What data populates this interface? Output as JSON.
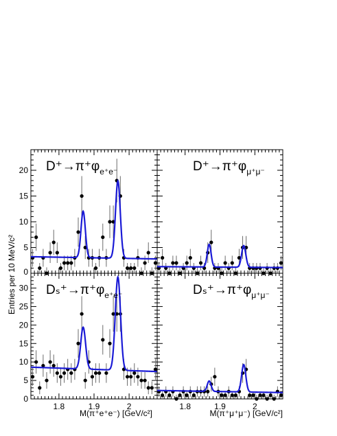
{
  "figure": {
    "ylabel": "Entries per 10 MeV/c²",
    "xlabel_left": "M(π⁺e⁺e⁻) [GeV/c²]",
    "xlabel_right": "M(π⁺μ⁺μ⁻) [GeV/c²]",
    "colors": {
      "fit": "#1a1ad6",
      "points": "#000000",
      "errors": "#6b6b6b"
    }
  },
  "chart_data": [
    {
      "type": "scatter",
      "panel": "top-left",
      "title": {
        "main": "D⁺→π⁺φ",
        "sub": "e⁺e⁻"
      },
      "xlim": [
        1.72,
        2.08
      ],
      "ylim": [
        0,
        24
      ],
      "xticks": [
        1.8,
        1.9,
        2.0
      ],
      "xticklabels": [
        "1.8",
        "1.9",
        "2"
      ],
      "yticks": [
        0,
        5,
        10,
        15,
        20
      ],
      "yticklabels": [
        "0",
        "5",
        "10",
        "15",
        "20"
      ],
      "x": [
        1.725,
        1.735,
        1.745,
        1.755,
        1.765,
        1.775,
        1.785,
        1.795,
        1.805,
        1.815,
        1.825,
        1.835,
        1.845,
        1.855,
        1.865,
        1.875,
        1.885,
        1.895,
        1.905,
        1.915,
        1.925,
        1.935,
        1.945,
        1.955,
        1.965,
        1.975,
        1.985,
        1.995,
        2.005,
        2.015,
        2.025,
        2.035,
        2.045,
        2.055,
        2.065,
        2.075
      ],
      "y": [
        3,
        7,
        1,
        3,
        0,
        4,
        6,
        4,
        1,
        2,
        2,
        2,
        3,
        8,
        15,
        5,
        3,
        3,
        1,
        3,
        7,
        3,
        10,
        10,
        18,
        15,
        3,
        1,
        1,
        1,
        3,
        0,
        2,
        4,
        0,
        2
      ],
      "fit": {
        "background": [
          3.0,
          -1.2
        ],
        "peaks": [
          {
            "mean": 1.869,
            "sigma": 0.0062,
            "amp": 9.0
          },
          {
            "mean": 1.968,
            "sigma": 0.0068,
            "amp": 15.0
          }
        ]
      }
    },
    {
      "type": "scatter",
      "panel": "top-right",
      "title": {
        "main": "D⁺→π⁺φ",
        "sub": "μ⁺μ⁻"
      },
      "xlim": [
        1.72,
        2.08
      ],
      "ylim": [
        0,
        24
      ],
      "xticks": [
        1.8,
        1.9,
        2.0
      ],
      "xticklabels": [
        "1.8",
        "1.9",
        "2"
      ],
      "yticks": [
        0,
        5,
        10,
        15,
        20
      ],
      "yticklabels": [
        "0",
        "5",
        "10",
        "15",
        "20"
      ],
      "x": [
        1.725,
        1.735,
        1.745,
        1.755,
        1.765,
        1.775,
        1.785,
        1.795,
        1.805,
        1.815,
        1.825,
        1.835,
        1.845,
        1.855,
        1.865,
        1.875,
        1.885,
        1.895,
        1.905,
        1.915,
        1.925,
        1.935,
        1.945,
        1.955,
        1.965,
        1.975,
        1.985,
        1.995,
        2.005,
        2.015,
        2.025,
        2.035,
        2.045,
        2.055,
        2.065,
        2.075
      ],
      "y": [
        1,
        3,
        1,
        0,
        2,
        2,
        0,
        1,
        2,
        3,
        1,
        0,
        2,
        1,
        4,
        6,
        1,
        1,
        0,
        2,
        1,
        2,
        0,
        3,
        5,
        5,
        1,
        1,
        1,
        1,
        0,
        1,
        0,
        1,
        1,
        2
      ],
      "fit": {
        "background": [
          1.2,
          -0.5
        ],
        "peaks": [
          {
            "mean": 1.869,
            "sigma": 0.0055,
            "amp": 4.4
          },
          {
            "mean": 1.968,
            "sigma": 0.006,
            "amp": 4.2
          }
        ]
      }
    },
    {
      "type": "scatter",
      "panel": "bottom-left",
      "title": {
        "main": "Dₛ⁺→π⁺φ",
        "sub": "e⁺e⁻"
      },
      "xlim": [
        1.72,
        2.08
      ],
      "ylim": [
        0,
        34
      ],
      "xticks": [
        1.8,
        1.9,
        2.0
      ],
      "xticklabels": [
        "1.8",
        "1.9",
        "2"
      ],
      "yticks": [
        0,
        5,
        10,
        15,
        20,
        25,
        30
      ],
      "yticklabels": [
        "0",
        "5",
        "10",
        "15",
        "20",
        "25",
        "30"
      ],
      "x": [
        1.725,
        1.735,
        1.745,
        1.755,
        1.765,
        1.775,
        1.785,
        1.795,
        1.805,
        1.815,
        1.825,
        1.835,
        1.845,
        1.855,
        1.865,
        1.875,
        1.885,
        1.895,
        1.905,
        1.915,
        1.925,
        1.935,
        1.945,
        1.955,
        1.965,
        1.975,
        1.985,
        1.995,
        2.005,
        2.015,
        2.025,
        2.035,
        2.045,
        2.055,
        2.065,
        2.075
      ],
      "y": [
        6,
        10,
        3,
        9,
        5,
        10,
        9,
        7,
        6,
        7,
        8,
        7,
        8,
        15,
        23,
        5,
        10,
        6,
        7,
        7,
        16,
        7,
        15,
        23,
        23,
        23,
        8,
        6,
        6,
        7,
        6,
        5,
        5,
        3,
        3,
        8
      ],
      "fit": {
        "background": [
          8.0,
          -3.3
        ],
        "peaks": [
          {
            "mean": 1.869,
            "sigma": 0.007,
            "amp": 11.3
          },
          {
            "mean": 1.968,
            "sigma": 0.0075,
            "amp": 25.2
          }
        ]
      }
    },
    {
      "type": "scatter",
      "panel": "bottom-right",
      "title": {
        "main": "Dₛ⁺→π⁺φ",
        "sub": "μ⁺μ⁻"
      },
      "xlim": [
        1.72,
        2.08
      ],
      "ylim": [
        0,
        34
      ],
      "xticks": [
        1.8,
        1.9,
        2.0
      ],
      "xticklabels": [
        "1.8",
        "1.9",
        "2"
      ],
      "yticks": [
        0,
        5,
        10,
        15,
        20,
        25,
        30
      ],
      "yticklabels": [
        "0",
        "5",
        "10",
        "15",
        "20",
        "25",
        "30"
      ],
      "x": [
        1.725,
        1.735,
        1.745,
        1.755,
        1.765,
        1.775,
        1.785,
        1.795,
        1.805,
        1.815,
        1.825,
        1.835,
        1.845,
        1.855,
        1.865,
        1.875,
        1.885,
        1.895,
        1.905,
        1.915,
        1.925,
        1.935,
        1.945,
        1.955,
        1.965,
        1.975,
        1.985,
        1.995,
        2.005,
        2.015,
        2.025,
        2.035,
        2.045,
        2.055,
        2.065,
        2.075
      ],
      "y": [
        2,
        1,
        2,
        1,
        2,
        0,
        1,
        2,
        1,
        2,
        1,
        2,
        2,
        2,
        2,
        4,
        6,
        2,
        1,
        1,
        2,
        1,
        1,
        2,
        7,
        8,
        1,
        1,
        0,
        1,
        1,
        0,
        1,
        0,
        2,
        1
      ],
      "fit": {
        "background": [
          2.0,
          -1.6
        ],
        "peaks": [
          {
            "mean": 1.869,
            "sigma": 0.0055,
            "amp": 2.8
          },
          {
            "mean": 1.968,
            "sigma": 0.006,
            "amp": 7.4
          }
        ]
      }
    }
  ]
}
